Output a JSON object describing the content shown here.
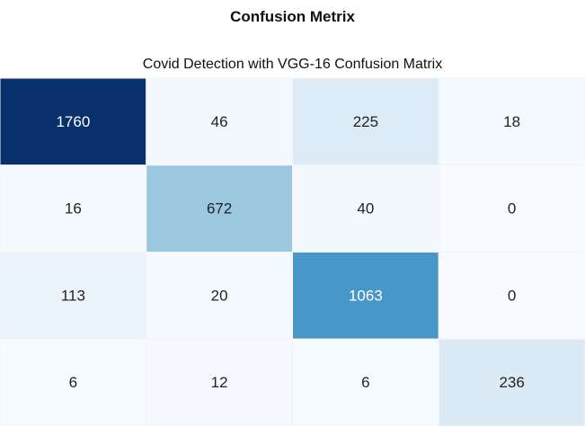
{
  "heading": "Confusion Metrix",
  "chart_data": {
    "type": "heatmap",
    "title": "Covid Detection with  VGG-16 Confusion Matrix",
    "xlabel": "",
    "ylabel": "",
    "colormap": "Blues",
    "grid": false,
    "legend": "none",
    "value_range": [
      0,
      1760
    ],
    "matrix": [
      [
        1760,
        46,
        225,
        18
      ],
      [
        16,
        672,
        40,
        0
      ],
      [
        113,
        20,
        1063,
        0
      ],
      [
        6,
        12,
        6,
        236
      ]
    ],
    "labels": [
      [
        "1760",
        "46",
        "225",
        "18"
      ],
      [
        "16",
        "672",
        "40",
        "0"
      ],
      [
        "113",
        "20",
        "1063",
        "0"
      ],
      [
        "6",
        "12",
        "6",
        "236"
      ]
    ]
  }
}
